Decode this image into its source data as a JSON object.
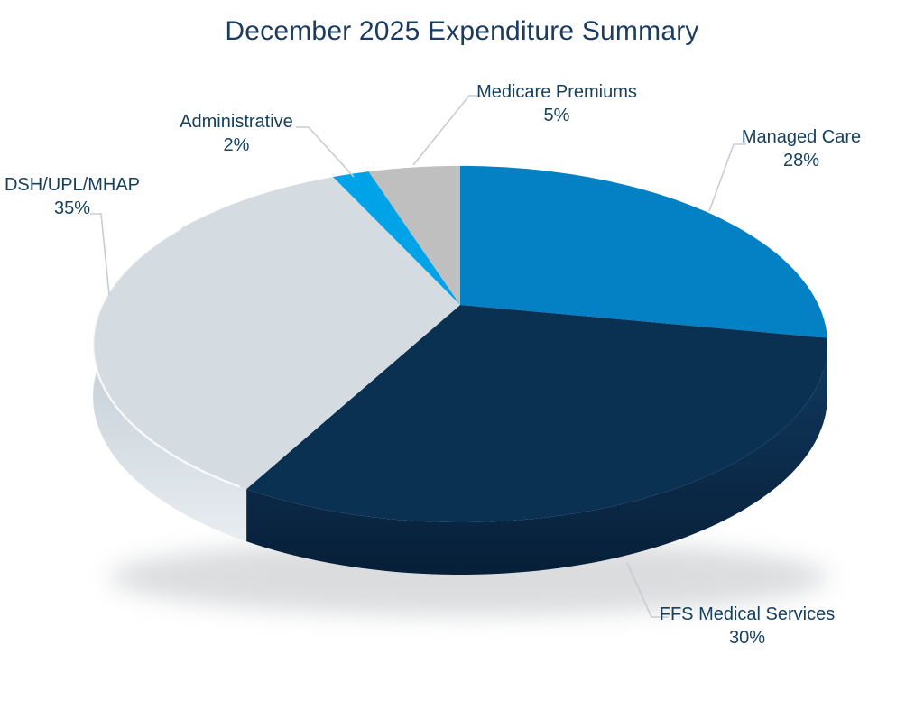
{
  "title": "December 2025 Expenditure Summary",
  "chart_data": {
    "type": "pie",
    "style": "3d",
    "start_angle_deg": 0,
    "direction": "clockwise",
    "title": "December 2025 Expenditure Summary",
    "legend": "none",
    "slices": [
      {
        "label": "Managed Care",
        "value": 28,
        "pct_label": "28%",
        "color": "#0480C4",
        "side_top": "#00659C",
        "side_bottom": "#004C78"
      },
      {
        "label": "FFS Medical Services",
        "value": 30,
        "pct_label": "30%",
        "color": "#0B3152",
        "side_top": "#113A60",
        "side_bottom": "#071F38"
      },
      {
        "label": "DSH/UPL/MHAP",
        "value": 35,
        "pct_label": "35%",
        "color": "#D4DBE1",
        "side_top": "#BCC8D1",
        "side_bottom": "#E8EDF1",
        "rim_highlight": true
      },
      {
        "label": "Administrative",
        "value": 2,
        "pct_label": "2%",
        "color": "#00A3E8"
      },
      {
        "label": "Medicare Premiums",
        "value": 5,
        "pct_label": "5%",
        "color": "#BFBFBF"
      }
    ],
    "colors": {
      "title_text": "#1B3C5F",
      "label_text": "#17405F",
      "leader_line": "#C8CDD3",
      "shadow": "#C7CACD",
      "background": "#FFFFFF"
    }
  }
}
